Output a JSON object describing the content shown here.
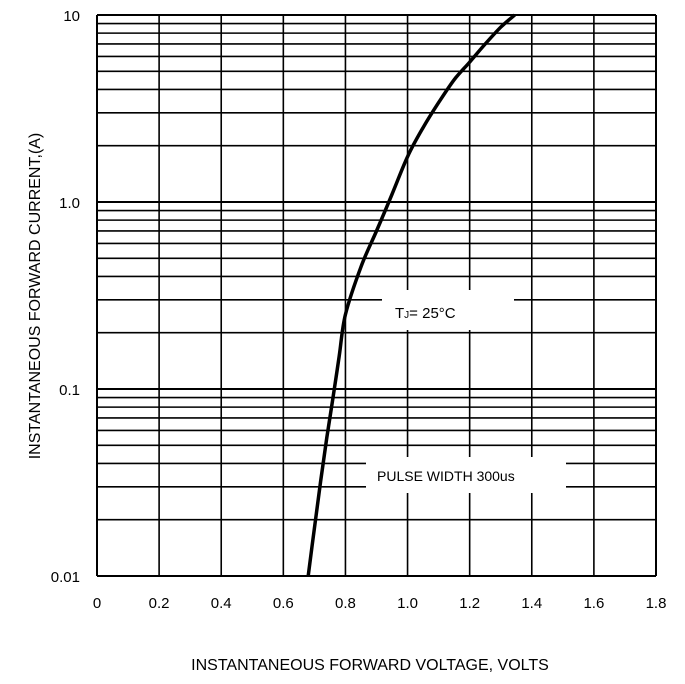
{
  "chart_data": {
    "type": "line",
    "title": "",
    "xlabel": "INSTANTANEOUS FORWARD VOLTAGE, VOLTS",
    "ylabel": "INSTANTANEOUS FORWARD CURRENT,(A)",
    "xlim": [
      0,
      1.8
    ],
    "ylim": [
      0.01,
      10
    ],
    "yscale": "log",
    "grid": true,
    "x_ticks": [
      "0",
      "0.2",
      "0.4",
      "0.6",
      "0.8",
      "1.0",
      "1.2",
      "1.4",
      "1.6",
      "1.8"
    ],
    "y_ticks": [
      "0.01",
      "0.1",
      "1.0",
      "10"
    ],
    "series": [
      {
        "name": "",
        "x": [
          0.68,
          0.7,
          0.72,
          0.74,
          0.76,
          0.78,
          0.8,
          0.85,
          0.9,
          0.95,
          1.0,
          1.05,
          1.1,
          1.15,
          1.2,
          1.25,
          1.3,
          1.345
        ],
        "y": [
          0.01,
          0.018,
          0.032,
          0.055,
          0.09,
          0.15,
          0.25,
          0.45,
          0.7,
          1.1,
          1.75,
          2.5,
          3.4,
          4.5,
          5.6,
          7.0,
          8.6,
          10.0
        ]
      }
    ],
    "annotations": {
      "tj_main": "T",
      "tj_sub": "J",
      "tj_rest": "= 25°C",
      "pulse": "PULSE WIDTH 300us"
    }
  }
}
